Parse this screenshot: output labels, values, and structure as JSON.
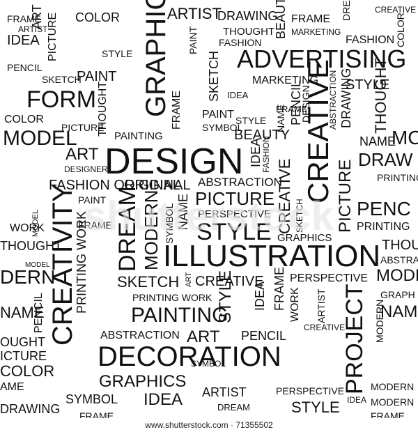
{
  "watermark": "shutterstock",
  "footer": "www.shutterstock.com · 71355502",
  "words": {
    "w1": "DESIGN",
    "w2": "ILLUSTRATION",
    "w3": "DECORATION",
    "w4": "ADVERTISING",
    "w5": "GRAPHIC",
    "w6": "CREATIVE",
    "w7": "CREATIVITY",
    "w8": "PROJECT",
    "w9": "FORM",
    "w10": "STYLE",
    "w11": "PICTURE",
    "w12": "DREAM",
    "w13": "MODERN",
    "w14": "PAINTING",
    "w15": "ART",
    "w16": "FASHION ORIGINAL",
    "w17": "ABSTRACTION",
    "w18": "PERSPECTIVE",
    "w19": "GRAPHICS",
    "w20": "IDEA",
    "w21": "SKETCH",
    "w22": "BEAUTY",
    "w23": "THOUGHT",
    "w24": "PENCIL",
    "w25": "DRAWING",
    "w26": "FRAME",
    "w27": "NAME",
    "w28": "MARKETING",
    "w29": "PRINTING WORK",
    "w30": "SYMBOL",
    "w31": "COLOR",
    "w32": "PAINT",
    "w33": "WORK",
    "w34": "DESIGNER",
    "w35": "MODEL",
    "w36": "ARTIST",
    "w37": "SKETCH",
    "w38": "PAINT",
    "w39": "ARTIST",
    "w40": "CREATIVE",
    "w41": "STYLE",
    "w42": "PERSPECTIVE",
    "w43": "FASHION",
    "w44": "PRINTING WORK",
    "w45": "GRAPHICS",
    "w46": "ART",
    "w47": "PICTURE",
    "w48": "THOUGHT",
    "w49": "FASHION",
    "w50": "PAINTING",
    "w51": "SYMBOL",
    "w52": "FRAME",
    "w53": "ABSTRACTION",
    "w54": "CREATIVE",
    "w55": "IDEA",
    "w56": "PAINT",
    "w57": "MARKETING",
    "w58": "FRAME",
    "w59": "STYLE",
    "w60": "IDEA",
    "w61": "SYMBOL",
    "w62": "FRAME",
    "w63": "MODERN",
    "w64": "FRAME",
    "w65": "ARTIST",
    "w66": "DREAM",
    "w67": "PERSPECTIVE",
    "w68": "STYLE",
    "w69": "MODERN",
    "w70": "FRAME",
    "w71": "COLOR",
    "w72": "DRAWING",
    "w73": "PENCIL",
    "w74": "PRINTING",
    "w75": "THOUGHT",
    "w76": "MODEL",
    "w77": "DERN",
    "w78": "NAME",
    "w79": "OUGHT",
    "w80": "ICTURE",
    "w81": "COLOR",
    "w82": "AME",
    "w83": "STYLE",
    "w84": "DRAW",
    "w85": "PENC",
    "w86": "THOU",
    "w87": "ABSTRA",
    "w88": "MO",
    "w89": "MODEL",
    "w90": "NAM",
    "w91": "GRAPH",
    "w92": "PRINTING",
    "w93": "CREATIVE",
    "w94": "IDEA",
    "w95": "PICTURE",
    "w96": "PENCIL",
    "w97": "STYLE",
    "w98": "ORIGINAL",
    "w99": "MODERN",
    "w100": "NAME",
    "w101": "IDEA",
    "w102": "FRAME",
    "w103": "BEAUTY",
    "w104": "SKETCH",
    "w105": "THOUGHT",
    "w106": "ART",
    "w107": "IDEA",
    "w108": "PENCIL",
    "w109": "FRAME",
    "w110": "SYMBOL",
    "w111": "FASHION",
    "w112": "CREATIVE",
    "w113": "SKETCH",
    "w114": "NAME",
    "w115": "PAINT",
    "w116": "PICTURE",
    "w117": "DREAM",
    "w118": "ARTIST",
    "w119": "WORK",
    "w120": "ABSTRACTION",
    "w121": "DESIGN",
    "w122": "DRAWING",
    "w123": "COLOR",
    "w124": "MODEL",
    "w125": "ART"
  }
}
